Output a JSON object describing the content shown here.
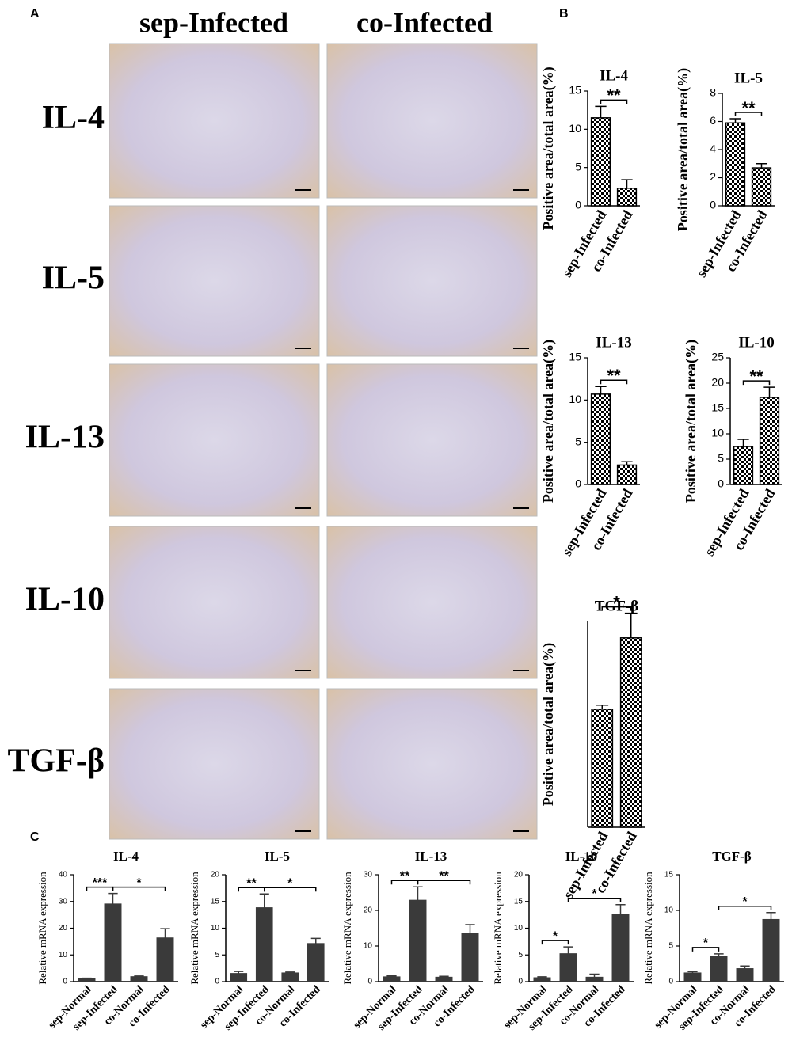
{
  "figure": {
    "panel_labels": [
      "A",
      "B",
      "C"
    ],
    "column_titles": [
      "sep-Infected",
      "co-Infected"
    ],
    "row_labels": [
      "IL-4",
      "IL-5",
      "IL-13",
      "IL-10",
      "TGF-β"
    ]
  },
  "chart_data": [
    {
      "type": "bar",
      "title": "IL-4",
      "y_label": "Positive area/total area(%)",
      "categories": [
        "sep-Infected",
        "co-Infected"
      ],
      "values": [
        11.5,
        2.3
      ],
      "errors": [
        1.5,
        1.1
      ],
      "color": "#000000",
      "pattern": "checkered",
      "ylim": [
        0,
        15
      ],
      "yticks": [
        0,
        5,
        10,
        15
      ],
      "annotations": [
        {
          "text": "**",
          "between": [
            "sep-Infected",
            "co-Infected"
          ]
        }
      ]
    },
    {
      "type": "bar",
      "title": "IL-5",
      "y_label": "Positive area/total area(%)",
      "categories": [
        "sep-Infected",
        "co-Infected"
      ],
      "values": [
        5.9,
        2.7
      ],
      "errors": [
        0.3,
        0.3
      ],
      "color": "#000000",
      "pattern": "checkered",
      "ylim": [
        0,
        8
      ],
      "yticks": [
        0,
        2,
        4,
        6,
        8
      ],
      "annotations": [
        {
          "text": "**",
          "between": [
            "sep-Infected",
            "co-Infected"
          ]
        }
      ]
    },
    {
      "type": "bar",
      "title": "IL-13",
      "y_label": "Positive area/total area(%)",
      "categories": [
        "sep-Infected",
        "co-Infected"
      ],
      "values": [
        10.7,
        2.3
      ],
      "errors": [
        0.9,
        0.4
      ],
      "color": "#000000",
      "pattern": "checkered",
      "ylim": [
        0,
        15
      ],
      "yticks": [
        0,
        5,
        10,
        15
      ],
      "annotations": [
        {
          "text": "**",
          "between": [
            "sep-Infected",
            "co-Infected"
          ]
        }
      ]
    },
    {
      "type": "bar",
      "title": "IL-10",
      "y_label": "Positive area/total area(%)",
      "categories": [
        "sep-Infected",
        "co-Infected"
      ],
      "values": [
        7.5,
        17.2
      ],
      "errors": [
        1.4,
        2.0
      ],
      "color": "#000000",
      "pattern": "checkered",
      "ylim": [
        0,
        25
      ],
      "yticks": [
        0,
        5,
        10,
        15,
        20,
        25
      ],
      "annotations": [
        {
          "text": "**",
          "between": [
            "sep-Infected",
            "co-Infected"
          ]
        }
      ]
    },
    {
      "type": "bar",
      "title": "TGF-β",
      "y_label": "Positive area/total area(%)",
      "categories": [
        "sep-Infected",
        "co-Infected"
      ],
      "values": [
        8.6,
        13.8
      ],
      "errors": [
        0.3,
        1.8
      ],
      "color": "#000000",
      "pattern": "checkered",
      "ylim": [
        0,
        15
      ],
      "yticks": [],
      "annotations": [
        {
          "text": "*",
          "between": [
            "sep-Infected",
            "co-Infected"
          ]
        }
      ]
    },
    {
      "type": "bar",
      "title": "IL-4",
      "y_label": "Relative mRNA expression",
      "categories": [
        "sep-Normal",
        "sep-Infected",
        "co-Normal",
        "co-Infected"
      ],
      "values": [
        1.0,
        29,
        1.8,
        16.3
      ],
      "errors": [
        0.3,
        4,
        0.3,
        3.5
      ],
      "color": "#3a3a3a",
      "ylim": [
        0,
        40
      ],
      "yticks": [
        0,
        10,
        20,
        30,
        40
      ],
      "annotations": [
        {
          "text": "***",
          "between": [
            "sep-Normal",
            "sep-Infected"
          ]
        },
        {
          "text": "*",
          "between": [
            "sep-Infected",
            "co-Infected"
          ]
        }
      ]
    },
    {
      "type": "bar",
      "title": "IL-5",
      "y_label": "Relative mRNA expression",
      "categories": [
        "sep-Normal",
        "sep-Infected",
        "co-Normal",
        "co-Infected"
      ],
      "values": [
        1.5,
        13.8,
        1.6,
        7.1
      ],
      "errors": [
        0.4,
        2.6,
        0.2,
        1.0
      ],
      "color": "#3a3a3a",
      "ylim": [
        0,
        20
      ],
      "yticks": [
        0,
        5,
        10,
        15,
        20
      ],
      "annotations": [
        {
          "text": "**",
          "between": [
            "sep-Normal",
            "sep-Infected"
          ]
        },
        {
          "text": "*",
          "between": [
            "sep-Infected",
            "co-Infected"
          ]
        }
      ]
    },
    {
      "type": "bar",
      "title": "IL-13",
      "y_label": "Relative mRNA expression",
      "categories": [
        "sep-Normal",
        "sep-Infected",
        "co-Normal",
        "co-Infected"
      ],
      "values": [
        1.3,
        22.8,
        1.2,
        13.5
      ],
      "errors": [
        0.3,
        3.8,
        0.3,
        2.5
      ],
      "color": "#3a3a3a",
      "ylim": [
        0,
        30
      ],
      "yticks": [
        0,
        10,
        20,
        30
      ],
      "annotations": [
        {
          "text": "**",
          "between": [
            "sep-Normal",
            "sep-Infected"
          ]
        },
        {
          "text": "**",
          "between": [
            "sep-Infected",
            "co-Infected"
          ]
        }
      ]
    },
    {
      "type": "bar",
      "title": "IL-10",
      "y_label": "Relative mRNA expression",
      "categories": [
        "sep-Normal",
        "sep-Infected",
        "co-Normal",
        "co-Infected"
      ],
      "values": [
        0.7,
        5.2,
        0.8,
        12.6
      ],
      "errors": [
        0.2,
        1.3,
        0.6,
        1.8
      ],
      "color": "#3a3a3a",
      "ylim": [
        0,
        20
      ],
      "yticks": [
        0,
        5,
        10,
        15,
        20
      ],
      "annotations": [
        {
          "text": "*",
          "between": [
            "sep-Normal",
            "sep-Infected"
          ]
        },
        {
          "text": "*",
          "between": [
            "sep-Infected",
            "co-Infected"
          ]
        }
      ]
    },
    {
      "type": "bar",
      "title": "TGF-β",
      "y_label": "Relative mRNA expression",
      "categories": [
        "sep-Normal",
        "sep-Infected",
        "co-Normal",
        "co-Infected"
      ],
      "values": [
        1.2,
        3.5,
        1.8,
        8.7
      ],
      "errors": [
        0.2,
        0.4,
        0.4,
        1.0
      ],
      "color": "#3a3a3a",
      "ylim": [
        0,
        15
      ],
      "yticks": [
        0,
        5,
        10,
        15
      ],
      "annotations": [
        {
          "text": "*",
          "between": [
            "sep-Normal",
            "sep-Infected"
          ]
        },
        {
          "text": "*",
          "between": [
            "sep-Infected",
            "co-Infected"
          ]
        }
      ]
    }
  ]
}
